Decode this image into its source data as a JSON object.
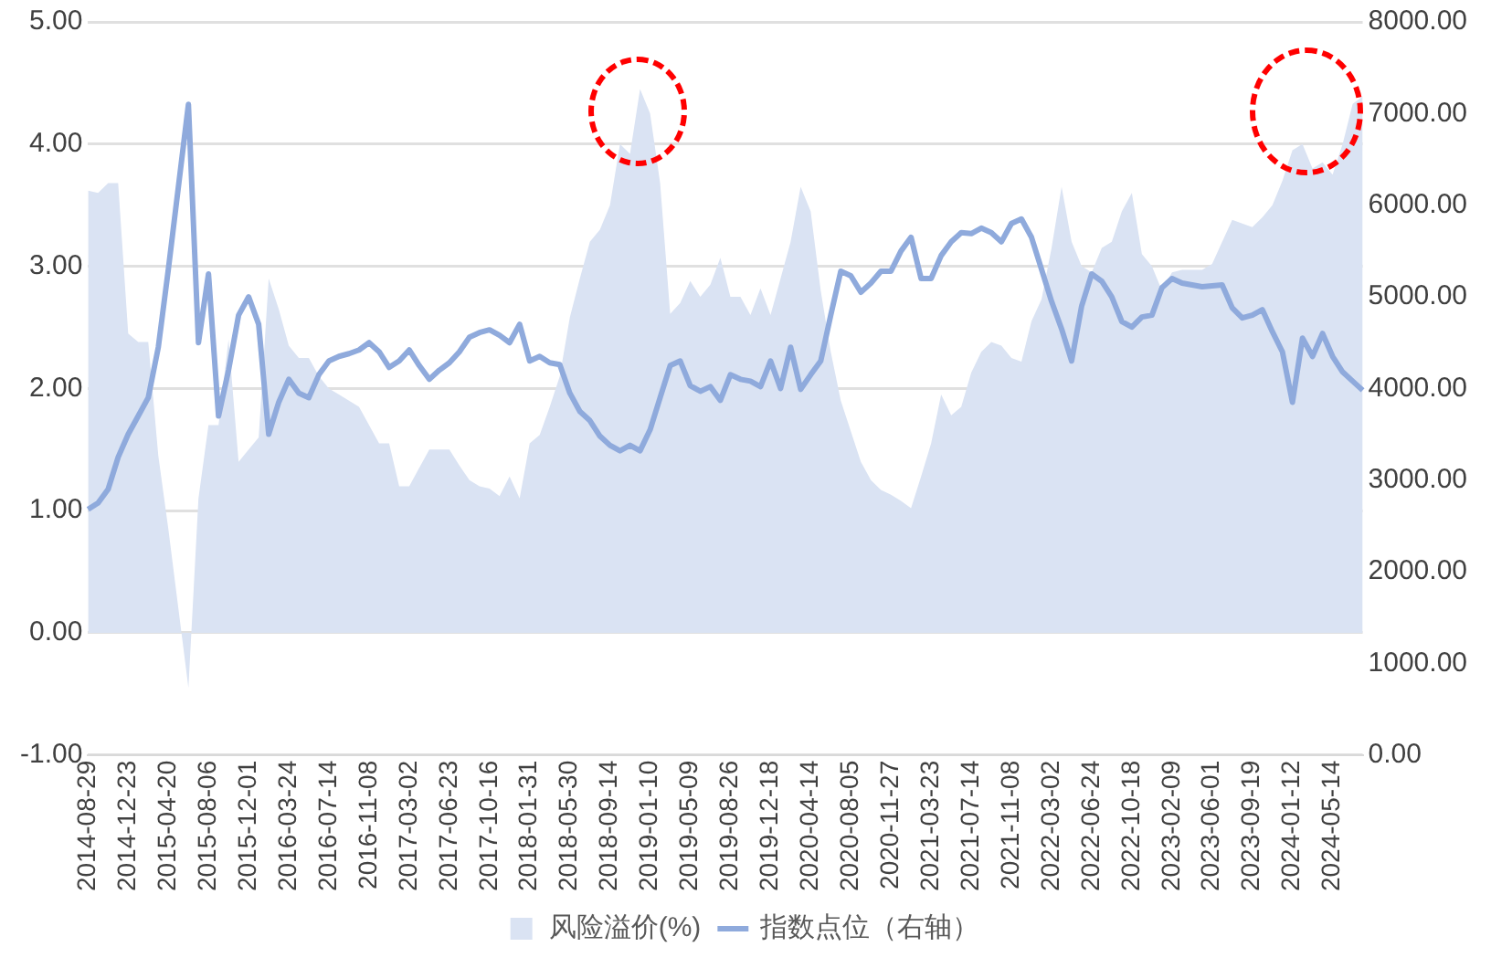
{
  "chart_data": {
    "type": "area",
    "categories": [
      "2014-08-29",
      null,
      null,
      null,
      "2014-12-23",
      null,
      null,
      null,
      "2015-04-20",
      null,
      null,
      null,
      "2015-08-06",
      null,
      null,
      null,
      "2015-12-01",
      null,
      null,
      null,
      "2016-03-24",
      null,
      null,
      null,
      "2016-07-14",
      null,
      null,
      null,
      "2016-11-08",
      null,
      null,
      null,
      "2017-03-02",
      null,
      null,
      null,
      "2017-06-23",
      null,
      null,
      null,
      "2017-10-16",
      null,
      null,
      null,
      "2018-01-31",
      null,
      null,
      null,
      "2018-05-30",
      null,
      null,
      null,
      "2018-09-14",
      null,
      null,
      null,
      "2019-01-10",
      null,
      null,
      null,
      "2019-05-09",
      null,
      null,
      null,
      "2019-08-26",
      null,
      null,
      null,
      "2019-12-18",
      null,
      null,
      null,
      "2020-04-14",
      null,
      null,
      null,
      "2020-08-05",
      null,
      null,
      null,
      "2020-11-27",
      null,
      null,
      null,
      "2021-03-23",
      null,
      null,
      null,
      "2021-07-14",
      null,
      null,
      null,
      "2021-11-08",
      null,
      null,
      null,
      "2022-03-02",
      null,
      null,
      null,
      "2022-06-24",
      null,
      null,
      null,
      "2022-10-18",
      null,
      null,
      null,
      "2023-02-09",
      null,
      null,
      null,
      "2023-06-01",
      null,
      null,
      null,
      "2023-09-19",
      null,
      null,
      null,
      "2024-01-12",
      null,
      null,
      null,
      "2024-05-14",
      null,
      null,
      null
    ],
    "series": [
      {
        "name": "风险溢价(%)",
        "type": "area",
        "color": "#dae3f3",
        "values": [
          3.62,
          3.6,
          3.68,
          3.68,
          2.45,
          2.38,
          2.38,
          1.45,
          0.85,
          0.2,
          -0.45,
          1.1,
          1.7,
          1.7,
          2.4,
          1.4,
          1.5,
          1.6,
          2.9,
          2.65,
          2.35,
          2.25,
          2.25,
          2.1,
          2.0,
          1.95,
          1.9,
          1.85,
          1.7,
          1.55,
          1.55,
          1.2,
          1.2,
          1.35,
          1.5,
          1.5,
          1.5,
          1.37,
          1.25,
          1.2,
          1.18,
          1.12,
          1.28,
          1.1,
          1.55,
          1.62,
          1.85,
          2.1,
          2.58,
          2.9,
          3.2,
          3.3,
          3.5,
          4.0,
          3.92,
          4.45,
          4.25,
          3.68,
          2.61,
          2.7,
          2.88,
          2.75,
          2.85,
          3.07,
          2.75,
          2.75,
          2.6,
          2.82,
          2.6,
          2.9,
          3.2,
          3.65,
          3.45,
          2.8,
          2.3,
          1.9,
          1.65,
          1.4,
          1.25,
          1.17,
          1.13,
          1.08,
          1.02,
          1.28,
          1.55,
          1.95,
          1.78,
          1.85,
          2.13,
          2.3,
          2.38,
          2.35,
          2.25,
          2.22,
          2.55,
          2.73,
          3.15,
          3.65,
          3.2,
          3.0,
          2.95,
          3.15,
          3.2,
          3.45,
          3.6,
          3.1,
          3.0,
          2.8,
          2.95,
          2.97,
          2.97,
          2.97,
          3.02,
          3.2,
          3.38,
          3.35,
          3.32,
          3.4,
          3.5,
          3.7,
          3.95,
          4.0,
          3.8,
          3.85,
          3.75,
          4.0,
          4.33,
          4.39
        ]
      },
      {
        "name": "指数点位（右轴）",
        "type": "line",
        "axis": "y2",
        "color": "#8faadc",
        "values": [
          2680,
          2750,
          2900,
          3250,
          3500,
          3700,
          3900,
          4450,
          5300,
          6200,
          7100,
          4500,
          5250,
          3700,
          4200,
          4800,
          5000,
          4700,
          3500,
          3850,
          4100,
          3950,
          3900,
          4150,
          4300,
          4350,
          4380,
          4420,
          4500,
          4400,
          4230,
          4300,
          4420,
          4250,
          4100,
          4200,
          4280,
          4400,
          4560,
          4610,
          4640,
          4580,
          4500,
          4700,
          4300,
          4350,
          4280,
          4260,
          3950,
          3750,
          3650,
          3480,
          3380,
          3320,
          3380,
          3320,
          3550,
          3900,
          4250,
          4300,
          4030,
          3970,
          4020,
          3870,
          4150,
          4100,
          4080,
          4020,
          4300,
          4000,
          4450,
          3990,
          4150,
          4300,
          4800,
          5280,
          5230,
          5050,
          5150,
          5280,
          5280,
          5500,
          5650,
          5200,
          5200,
          5450,
          5600,
          5700,
          5690,
          5750,
          5700,
          5600,
          5800,
          5850,
          5650,
          5300,
          4950,
          4650,
          4300,
          4900,
          5250,
          5170,
          5000,
          4730,
          4670,
          4780,
          4800,
          5100,
          5200,
          5150,
          5130,
          5110,
          5120,
          5130,
          4880,
          4770,
          4800,
          4860,
          4620,
          4400,
          3850,
          4550,
          4350,
          4600,
          4350,
          4180,
          4080,
          3980
        ]
      }
    ],
    "ylim": [
      -1,
      5
    ],
    "yticks": [
      {
        "value": -1,
        "label": "-1.00"
      },
      {
        "value": 0,
        "label": "0.00"
      },
      {
        "value": 1,
        "label": "1.00"
      },
      {
        "value": 2,
        "label": "2.00"
      },
      {
        "value": 3,
        "label": "3.00"
      },
      {
        "value": 4,
        "label": "4.00"
      },
      {
        "value": 5,
        "label": "5.00"
      }
    ],
    "y2lim": [
      0,
      8000
    ],
    "y2ticks": [
      {
        "value": 0,
        "label": "0.00"
      },
      {
        "value": 1000,
        "label": "1000.00"
      },
      {
        "value": 2000,
        "label": "2000.00"
      },
      {
        "value": 3000,
        "label": "3000.00"
      },
      {
        "value": 4000,
        "label": "4000.00"
      },
      {
        "value": 5000,
        "label": "5000.00"
      },
      {
        "value": 6000,
        "label": "6000.00"
      },
      {
        "value": 7000,
        "label": "7000.00"
      },
      {
        "value": 8000,
        "label": "8000.00"
      }
    ],
    "grid": "y",
    "legend": "bottom"
  }
}
